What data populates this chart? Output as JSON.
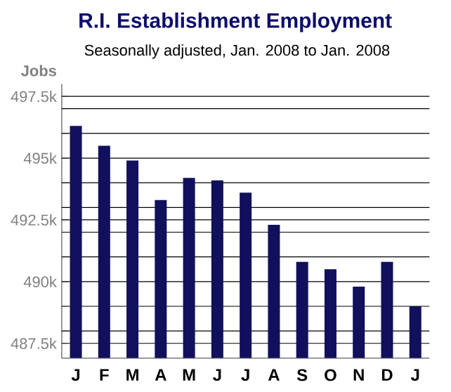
{
  "chart_data": {
    "type": "bar",
    "title": "R.I. Establishment Employment",
    "subtitle": "Seasonally adjusted, Jan. 2008 to Jan. 2008",
    "ylabel": "Jobs",
    "categories": [
      "J",
      "F",
      "M",
      "A",
      "M",
      "J",
      "J",
      "A",
      "S",
      "O",
      "N",
      "D",
      "J"
    ],
    "values": [
      496.3,
      495.5,
      494.9,
      493.3,
      494.2,
      494.1,
      493.6,
      492.3,
      490.8,
      490.5,
      489.8,
      490.8,
      489.0
    ],
    "color": "#10105c",
    "ylim": [
      486.9,
      498
    ],
    "yticks": [
      {
        "value": 487.5,
        "label": "487.5k"
      },
      {
        "value": 488,
        "label": null
      },
      {
        "value": 489,
        "label": null
      },
      {
        "value": 490,
        "label": "490k"
      },
      {
        "value": 491,
        "label": null
      },
      {
        "value": 492,
        "label": null
      },
      {
        "value": 492.5,
        "label": "492.5k"
      },
      {
        "value": 493,
        "label": null
      },
      {
        "value": 494,
        "label": null
      },
      {
        "value": 495,
        "label": "495k"
      },
      {
        "value": 496,
        "label": null
      },
      {
        "value": 497,
        "label": null
      },
      {
        "value": 497.5,
        "label": "497.5k"
      }
    ],
    "grid": "y"
  }
}
